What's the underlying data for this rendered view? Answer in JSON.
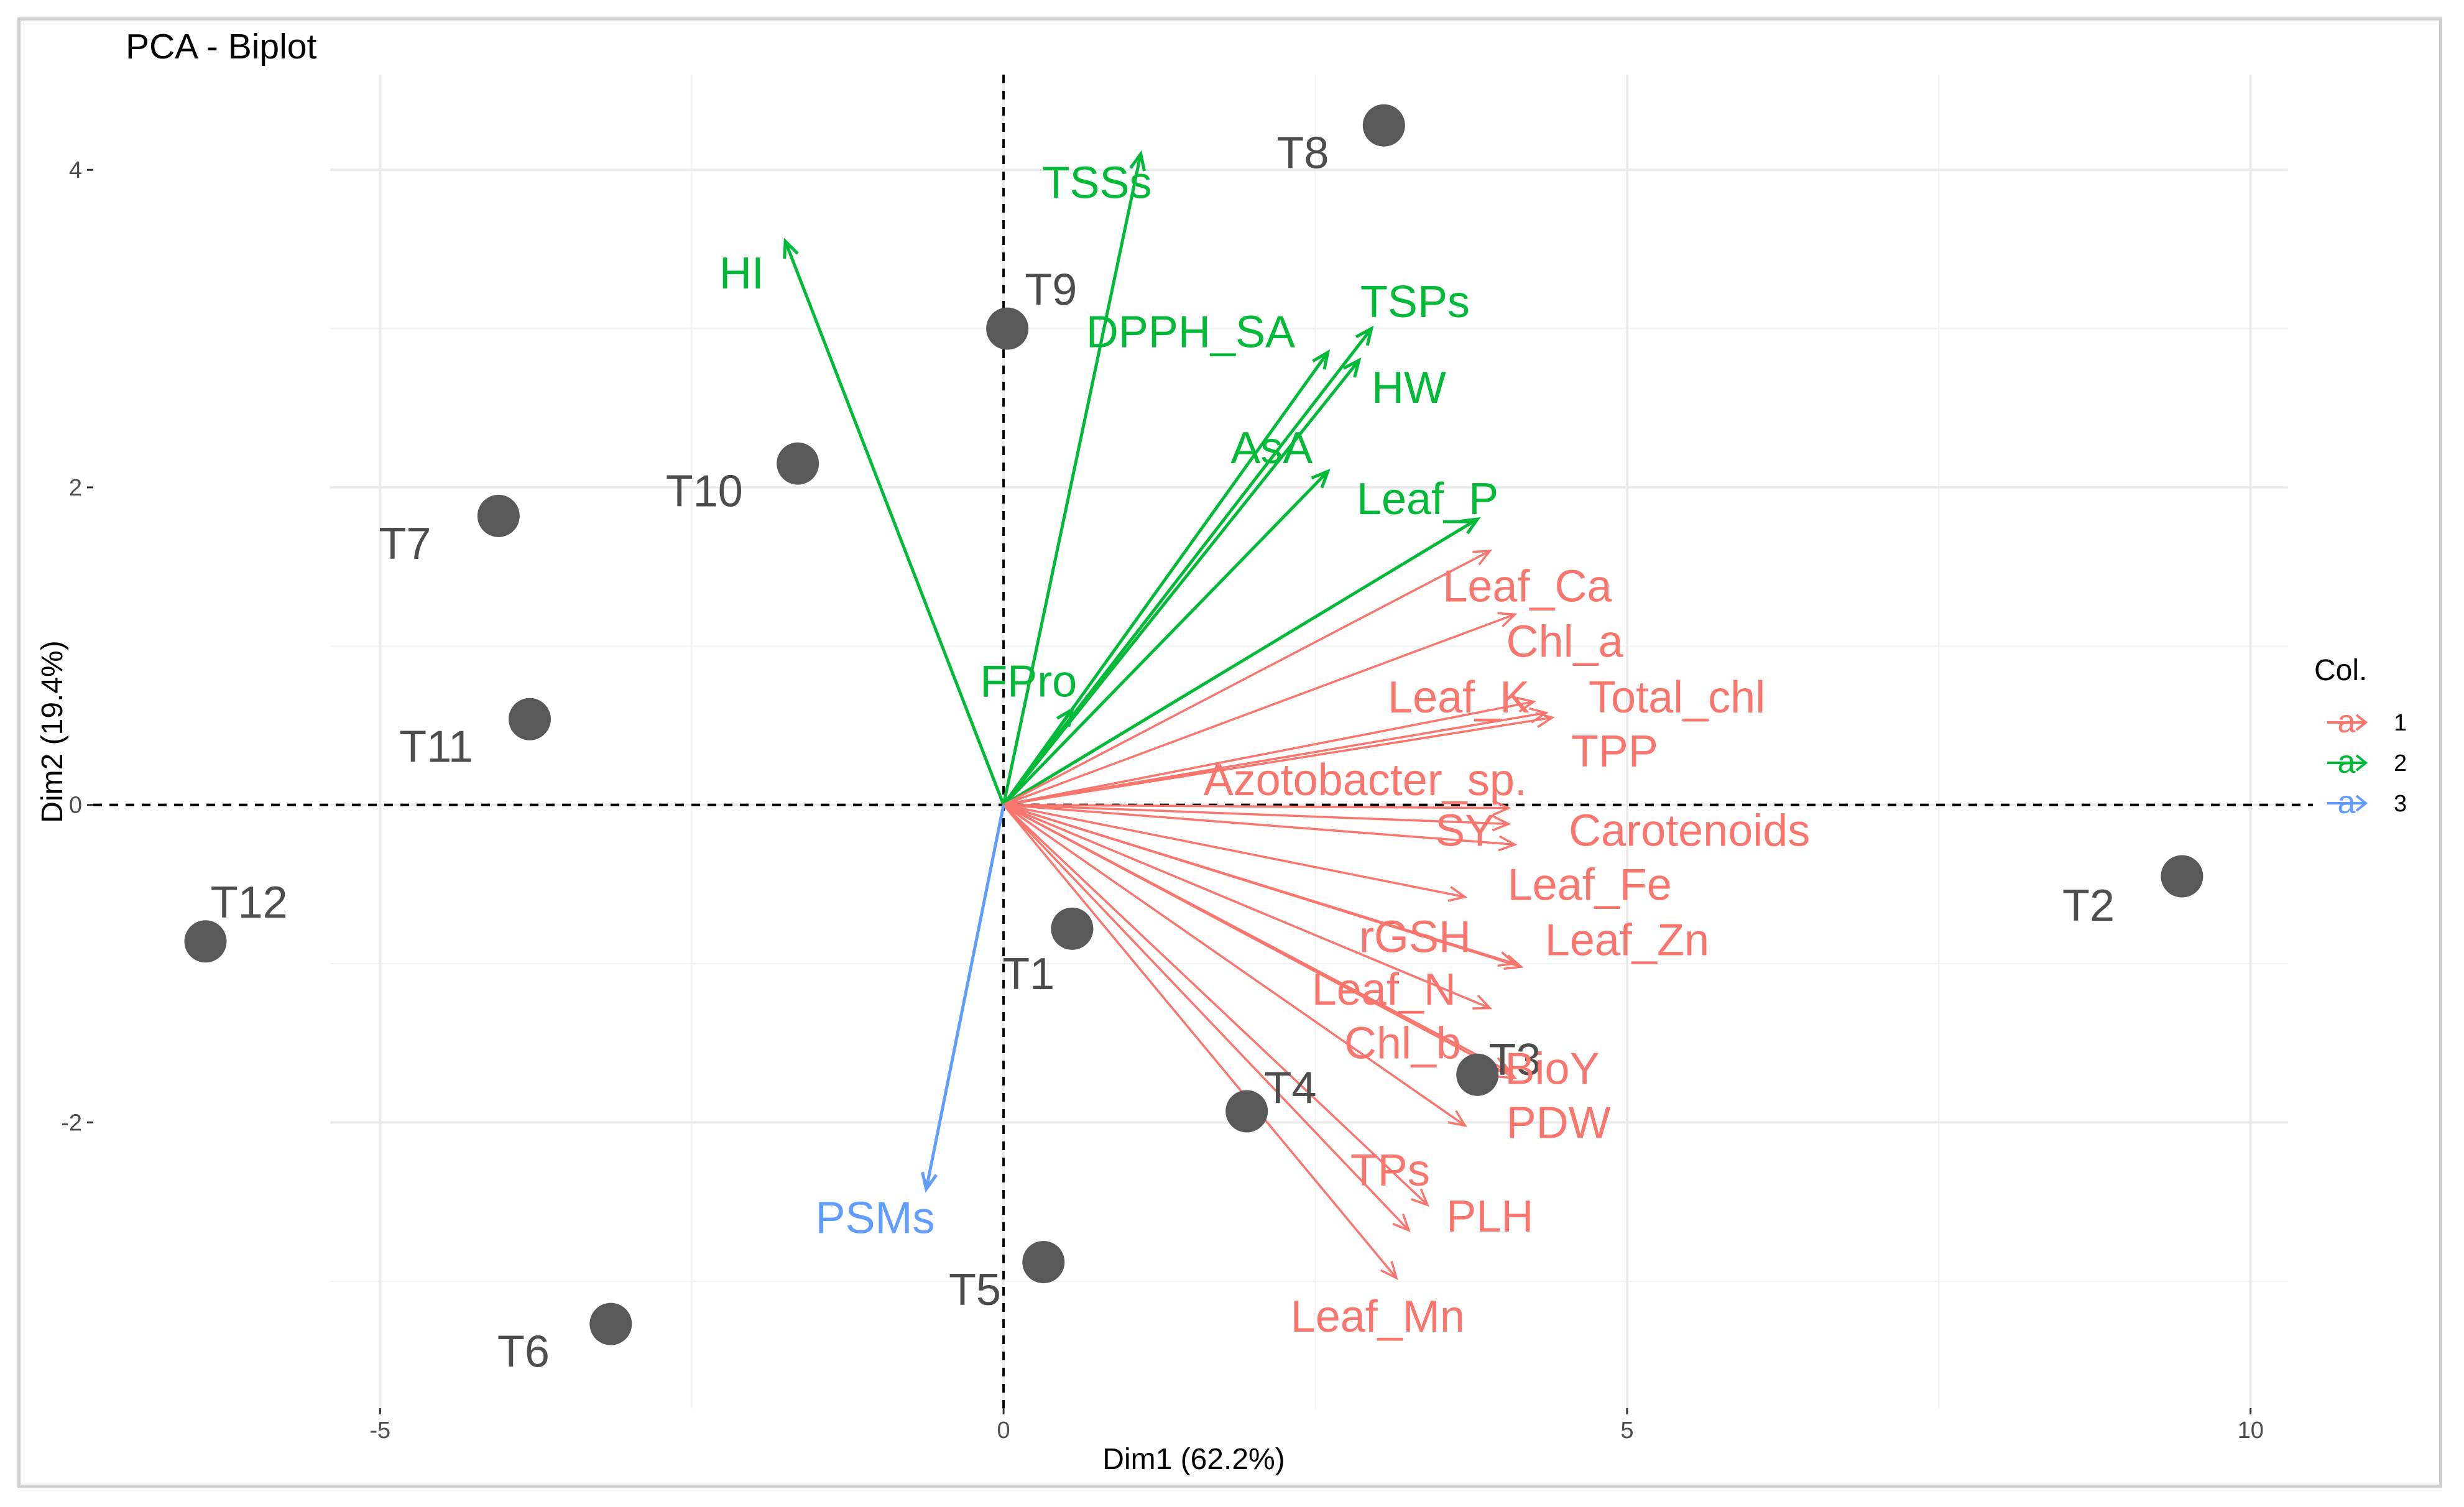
{
  "chart_data": {
    "type": "scatter",
    "subtype": "pca-biplot",
    "title": "PCA - Biplot",
    "xlabel": "Dim1 (62.2%)",
    "ylabel": "Dim2 (19.4%)",
    "xlim": [
      -7.3,
      10.5
    ],
    "ylim": [
      -3.8,
      4.6
    ],
    "xticks": [
      -5,
      0,
      5,
      10
    ],
    "yticks": [
      -2,
      0,
      2,
      4
    ],
    "grid": true,
    "legend": {
      "title": "Col.",
      "position": "right",
      "entries": [
        {
          "key": "1",
          "color": "#F8766D"
        },
        {
          "key": "2",
          "color": "#00BA38"
        },
        {
          "key": "3",
          "color": "#619CFF"
        }
      ]
    },
    "individuals": [
      {
        "name": "T1",
        "x": 0.55,
        "y": -0.78
      },
      {
        "name": "T2",
        "x": 9.45,
        "y": -0.45
      },
      {
        "name": "T3",
        "x": 3.8,
        "y": -1.7
      },
      {
        "name": "T4",
        "x": 1.95,
        "y": -1.93
      },
      {
        "name": "T5",
        "x": 0.32,
        "y": -2.88
      },
      {
        "name": "T6",
        "x": -3.15,
        "y": -3.27
      },
      {
        "name": "T7",
        "x": -4.05,
        "y": 1.82
      },
      {
        "name": "T8",
        "x": 3.05,
        "y": 4.28
      },
      {
        "name": "T9",
        "x": 0.03,
        "y": 3.0
      },
      {
        "name": "T10",
        "x": -1.65,
        "y": 2.15
      },
      {
        "name": "T11",
        "x": -3.8,
        "y": 0.54
      },
      {
        "name": "T12",
        "x": -6.4,
        "y": -0.86
      }
    ],
    "variables": [
      {
        "name": "TSSs",
        "group": "2",
        "x": 1.1,
        "y": 4.1
      },
      {
        "name": "HI",
        "group": "2",
        "x": -1.75,
        "y": 3.55
      },
      {
        "name": "DPPH_SA",
        "group": "2",
        "x": 2.6,
        "y": 2.85
      },
      {
        "name": "TSPs",
        "group": "2",
        "x": 2.95,
        "y": 3.0
      },
      {
        "name": "HW",
        "group": "2",
        "x": 2.85,
        "y": 2.8
      },
      {
        "name": "AsA",
        "group": "2",
        "x": 2.6,
        "y": 2.1
      },
      {
        "name": "Leaf_P",
        "group": "2",
        "x": 3.8,
        "y": 1.8
      },
      {
        "name": "FPro",
        "group": "2",
        "x": 0.55,
        "y": 0.6
      },
      {
        "name": "Leaf_Ca",
        "group": "1",
        "x": 3.9,
        "y": 1.6
      },
      {
        "name": "Chl_a",
        "group": "1",
        "x": 4.1,
        "y": 1.2
      },
      {
        "name": "Leaf_K",
        "group": "1",
        "x": 4.25,
        "y": 0.65
      },
      {
        "name": "Total_chl",
        "group": "1",
        "x": 4.35,
        "y": 0.58
      },
      {
        "name": "TPP",
        "group": "1",
        "x": 4.4,
        "y": 0.55
      },
      {
        "name": "Azotobacter_sp.",
        "group": "1",
        "x": 4.05,
        "y": -0.02
      },
      {
        "name": "SY",
        "group": "1",
        "x": 4.05,
        "y": -0.12
      },
      {
        "name": "Carotenoids",
        "group": "1",
        "x": 4.1,
        "y": -0.25
      },
      {
        "name": "Leaf_Fe",
        "group": "1",
        "x": 3.7,
        "y": -0.58
      },
      {
        "name": "rGSH",
        "group": "1",
        "x": 4.1,
        "y": -1.0
      },
      {
        "name": "Leaf_Zn",
        "group": "1",
        "x": 4.15,
        "y": -1.02
      },
      {
        "name": "Leaf_N",
        "group": "1",
        "x": 3.9,
        "y": -1.28
      },
      {
        "name": "Chl_b",
        "group": "1",
        "x": 4.05,
        "y": -1.68
      },
      {
        "name": "BioY",
        "group": "1",
        "x": 4.1,
        "y": -1.72
      },
      {
        "name": "PDW",
        "group": "1",
        "x": 3.7,
        "y": -2.02
      },
      {
        "name": "TPs",
        "group": "1",
        "x": 3.4,
        "y": -2.52
      },
      {
        "name": "PLH",
        "group": "1",
        "x": 3.25,
        "y": -2.68
      },
      {
        "name": "Leaf_Mn",
        "group": "1",
        "x": 3.15,
        "y": -2.98
      },
      {
        "name": "PSMs",
        "group": "3",
        "x": -0.62,
        "y": -2.42
      }
    ]
  }
}
